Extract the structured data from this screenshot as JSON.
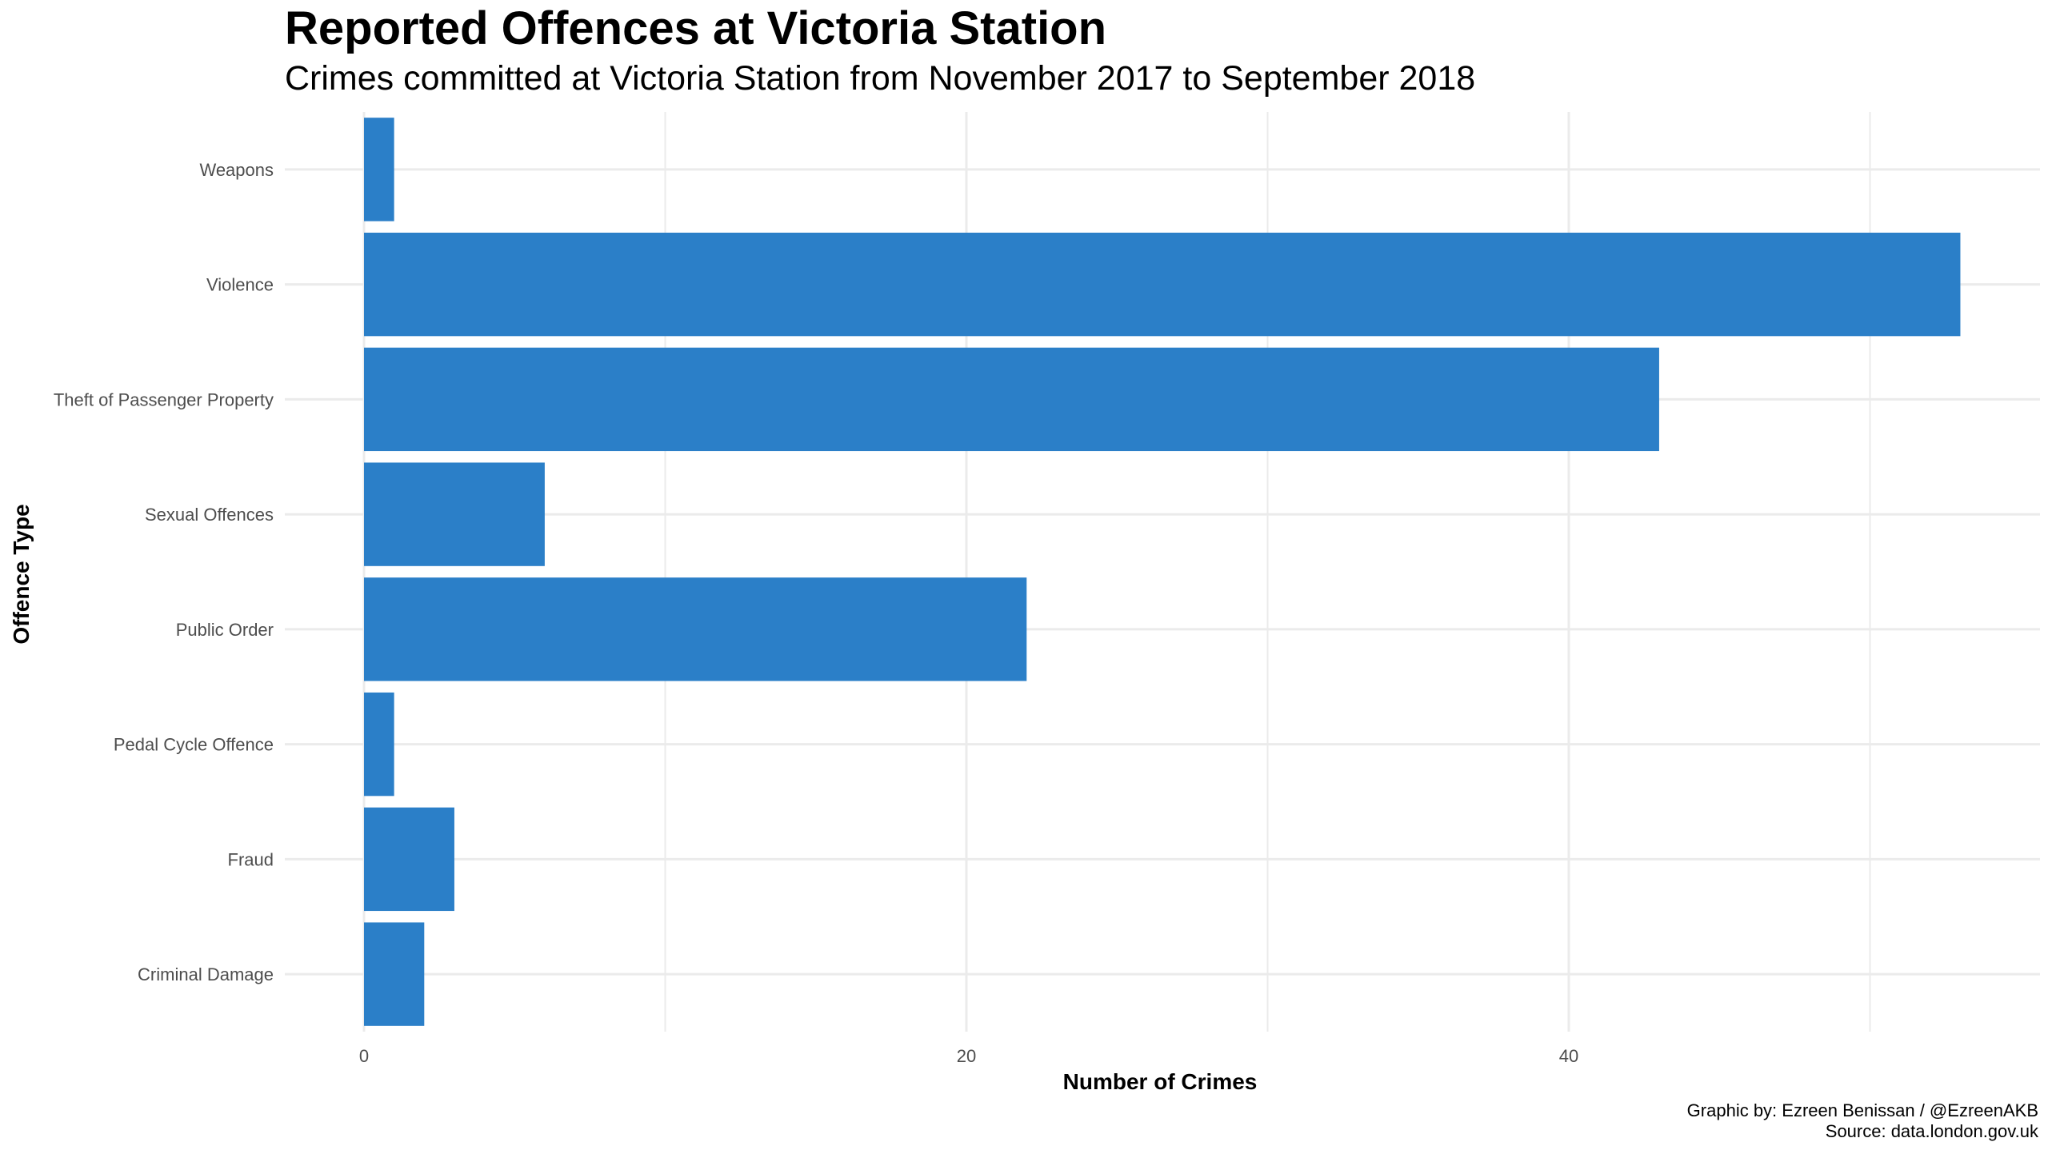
{
  "chart_data": {
    "type": "bar",
    "orientation": "horizontal",
    "title": "Reported Offences at Victoria Station",
    "subtitle": "Crimes committed at Victoria Station from November 2017 to September 2018",
    "xlabel": "Number of Crimes",
    "ylabel": "Offence Type",
    "categories": [
      "Criminal Damage",
      "Fraud",
      "Pedal Cycle Offence",
      "Public Order",
      "Sexual Offences",
      "Theft of Passenger Property",
      "Violence",
      "Weapons"
    ],
    "values": [
      2,
      3,
      1,
      22,
      6,
      43,
      53,
      1
    ],
    "x_ticks": [
      0,
      20,
      40
    ],
    "xlim": [
      0,
      55.7
    ],
    "grid": true,
    "bar_color": "#2B7FC8",
    "caption": [
      "Graphic by: Ezreen Benissan / @EzreenAKB",
      "Source: data.london.gov.uk"
    ]
  }
}
